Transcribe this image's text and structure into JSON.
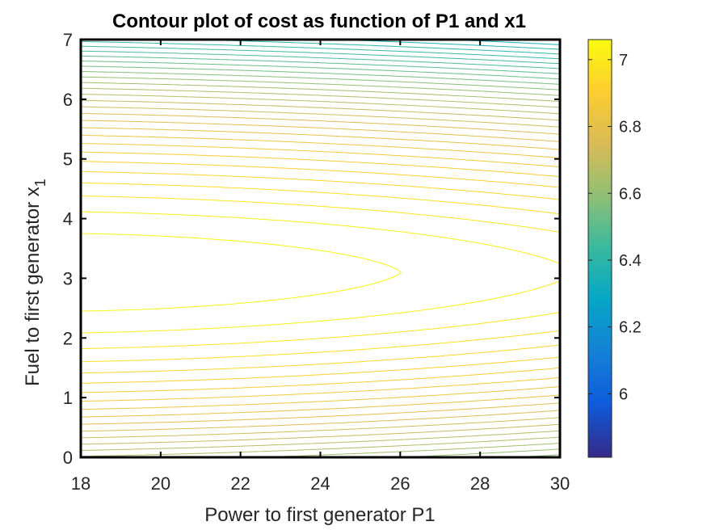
{
  "chart_data": {
    "type": "contour",
    "title": "Contour plot of cost as function of P1 and x1",
    "xlabel": "Power to first generator P1",
    "ylabel": "Fuel to first generator x",
    "ylabel_subscript": "1",
    "xlim": [
      18,
      30
    ],
    "ylim": [
      0,
      7
    ],
    "xticks": [
      "18",
      "20",
      "22",
      "24",
      "26",
      "28",
      "30"
    ],
    "yticks": [
      "0",
      "1",
      "2",
      "3",
      "4",
      "5",
      "6",
      "7"
    ],
    "colorbar": {
      "range": [
        5.81,
        7.06
      ],
      "ticks": [
        "6",
        "6.2",
        "6.4",
        "6.6",
        "6.8",
        "7"
      ],
      "tick_values": [
        6.0,
        6.2,
        6.4,
        6.6,
        6.8,
        7.0
      ],
      "colormap": "parula"
    },
    "surface_model": {
      "description": "",
      "peak_cost": 7.06,
      "peak_x": 18.3,
      "peak_y": 3.1
    },
    "grid": false,
    "box": true
  }
}
